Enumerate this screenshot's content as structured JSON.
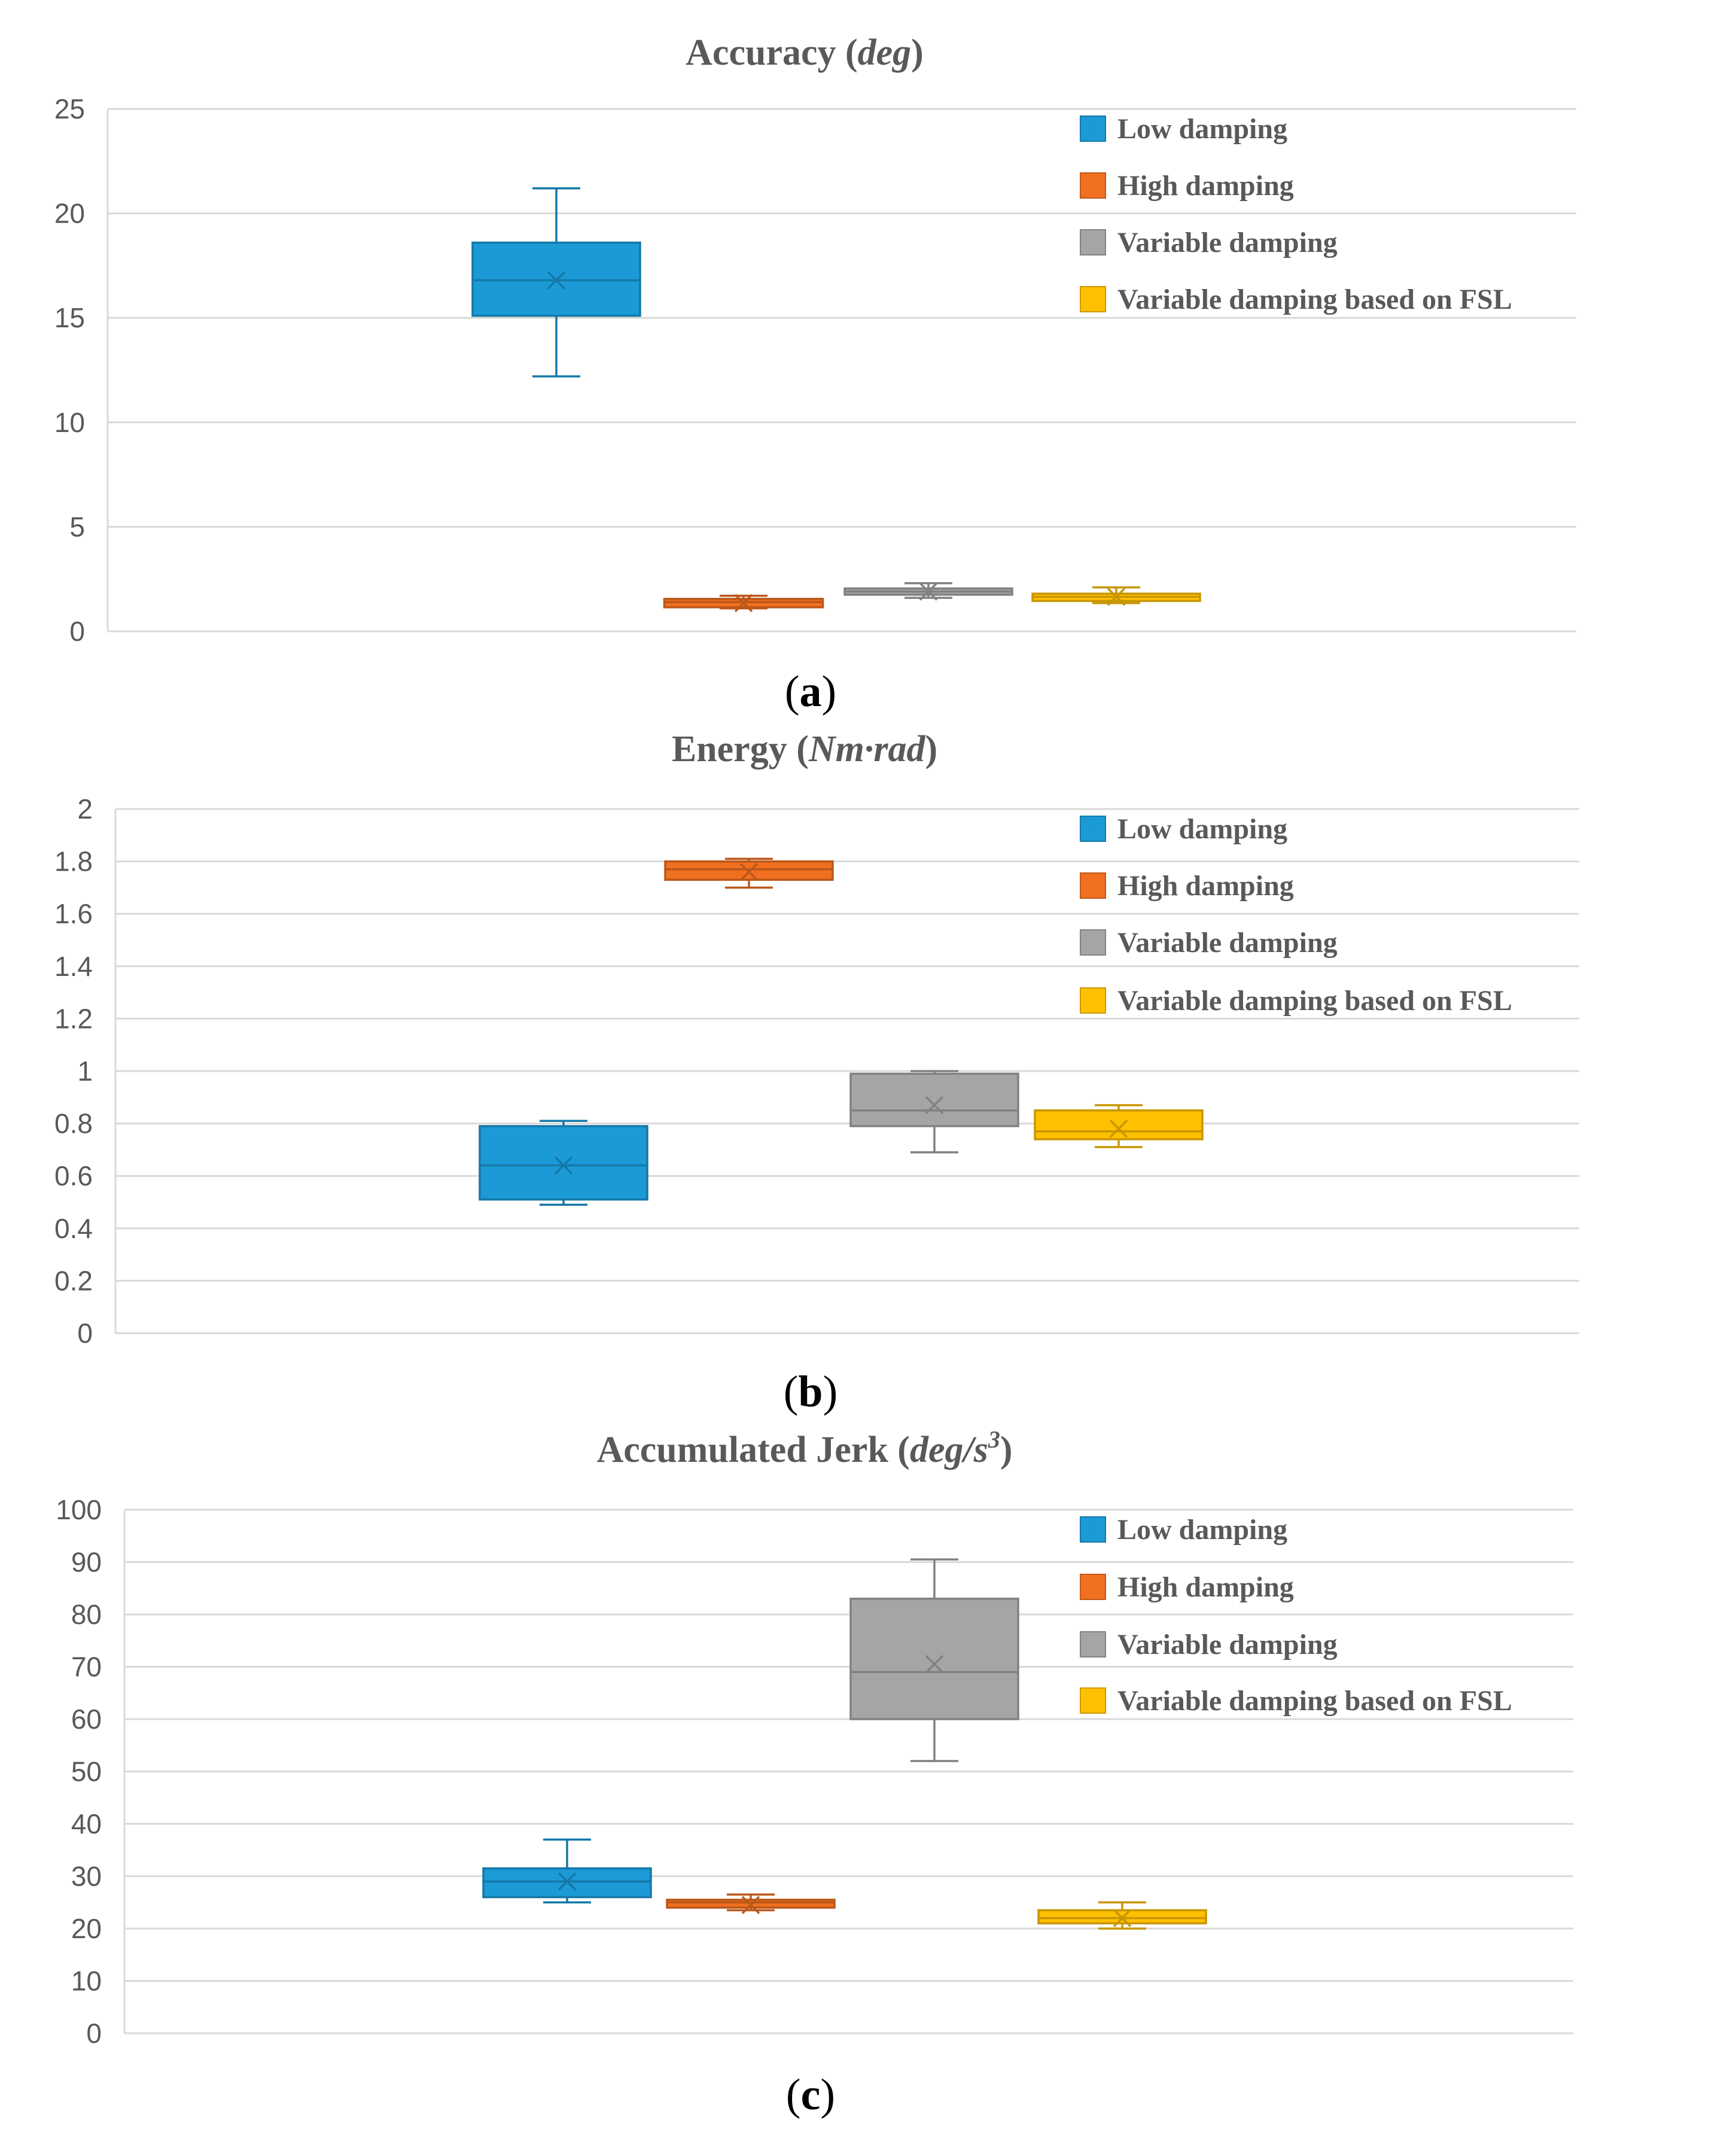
{
  "chart_data": [
    {
      "type": "box",
      "title": "Accuracy (deg)",
      "title_main": "Accuracy (",
      "title_unit": "deg",
      "title_close": ")",
      "caption": "(a)",
      "caption_letter": "a",
      "ylim": [
        0,
        25
      ],
      "y_ticks": [
        0,
        5,
        10,
        15,
        20,
        25
      ],
      "grid": true,
      "legend_position": "top-right",
      "series": [
        {
          "name": "Low damping",
          "color": "#1b9ad6",
          "min": 12.2,
          "q1": 15.1,
          "median": 16.8,
          "q3": 18.6,
          "max": 21.2,
          "mean": 16.8
        },
        {
          "name": "High damping",
          "color": "#f07020",
          "min": 1.1,
          "q1": 1.15,
          "median": 1.4,
          "q3": 1.55,
          "max": 1.7,
          "mean": 1.35
        },
        {
          "name": "Variable damping",
          "color": "#a5a5a5",
          "min": 1.6,
          "q1": 1.75,
          "median": 1.9,
          "q3": 2.05,
          "max": 2.3,
          "mean": 1.9
        },
        {
          "name": "Variable damping based on FSL",
          "color": "#ffc000",
          "min": 1.35,
          "q1": 1.45,
          "median": 1.65,
          "q3": 1.8,
          "max": 2.1,
          "mean": 1.65
        }
      ]
    },
    {
      "type": "box",
      "title": "Energy (Nm·rad)",
      "title_main": "Energy  (",
      "title_unit": "Nm·rad",
      "title_close": ")",
      "caption": "(b)",
      "caption_letter": "b",
      "ylim": [
        0,
        2
      ],
      "y_ticks": [
        "0",
        "0.2",
        "0.4",
        "0.6",
        "0.8",
        "1",
        "1.2",
        "1.4",
        "1.6",
        "1.8",
        "2"
      ],
      "grid": true,
      "legend_position": "top-right",
      "series": [
        {
          "name": "Low damping",
          "color": "#1b9ad6",
          "min": 0.49,
          "q1": 0.51,
          "median": 0.64,
          "q3": 0.79,
          "max": 0.81,
          "mean": 0.64
        },
        {
          "name": "High damping",
          "color": "#f07020",
          "min": 1.7,
          "q1": 1.73,
          "median": 1.77,
          "q3": 1.8,
          "max": 1.81,
          "mean": 1.76
        },
        {
          "name": "Variable damping",
          "color": "#a5a5a5",
          "min": 0.69,
          "q1": 0.79,
          "median": 0.85,
          "q3": 0.99,
          "max": 1.0,
          "mean": 0.87
        },
        {
          "name": "Variable damping based on FSL",
          "color": "#ffc000",
          "min": 0.71,
          "q1": 0.74,
          "median": 0.77,
          "q3": 0.85,
          "max": 0.87,
          "mean": 0.78
        }
      ]
    },
    {
      "type": "box",
      "title": "Accumulated Jerk (deg/s³)",
      "title_main": "Accumulated Jerk (",
      "title_unit": "deg/s",
      "title_sup": "3",
      "title_close": ")",
      "caption": "(c)",
      "caption_letter": "c",
      "ylim": [
        0,
        100
      ],
      "y_ticks": [
        0,
        10,
        20,
        30,
        40,
        50,
        60,
        70,
        80,
        90,
        100
      ],
      "grid": true,
      "legend_position": "top-right",
      "series": [
        {
          "name": "Low damping",
          "color": "#1b9ad6",
          "min": 25,
          "q1": 26,
          "median": 29,
          "q3": 31.5,
          "max": 37,
          "mean": 29
        },
        {
          "name": "High damping",
          "color": "#f07020",
          "min": 23.5,
          "q1": 24,
          "median": 25,
          "q3": 25.5,
          "max": 26.5,
          "mean": 24.5
        },
        {
          "name": "Variable damping",
          "color": "#a5a5a5",
          "min": 52,
          "q1": 60,
          "median": 69,
          "q3": 83,
          "max": 90.5,
          "mean": 70.5
        },
        {
          "name": "Variable damping based on FSL",
          "color": "#ffc000",
          "min": 20,
          "q1": 21,
          "median": 22,
          "q3": 23.5,
          "max": 25,
          "mean": 22
        }
      ]
    }
  ]
}
